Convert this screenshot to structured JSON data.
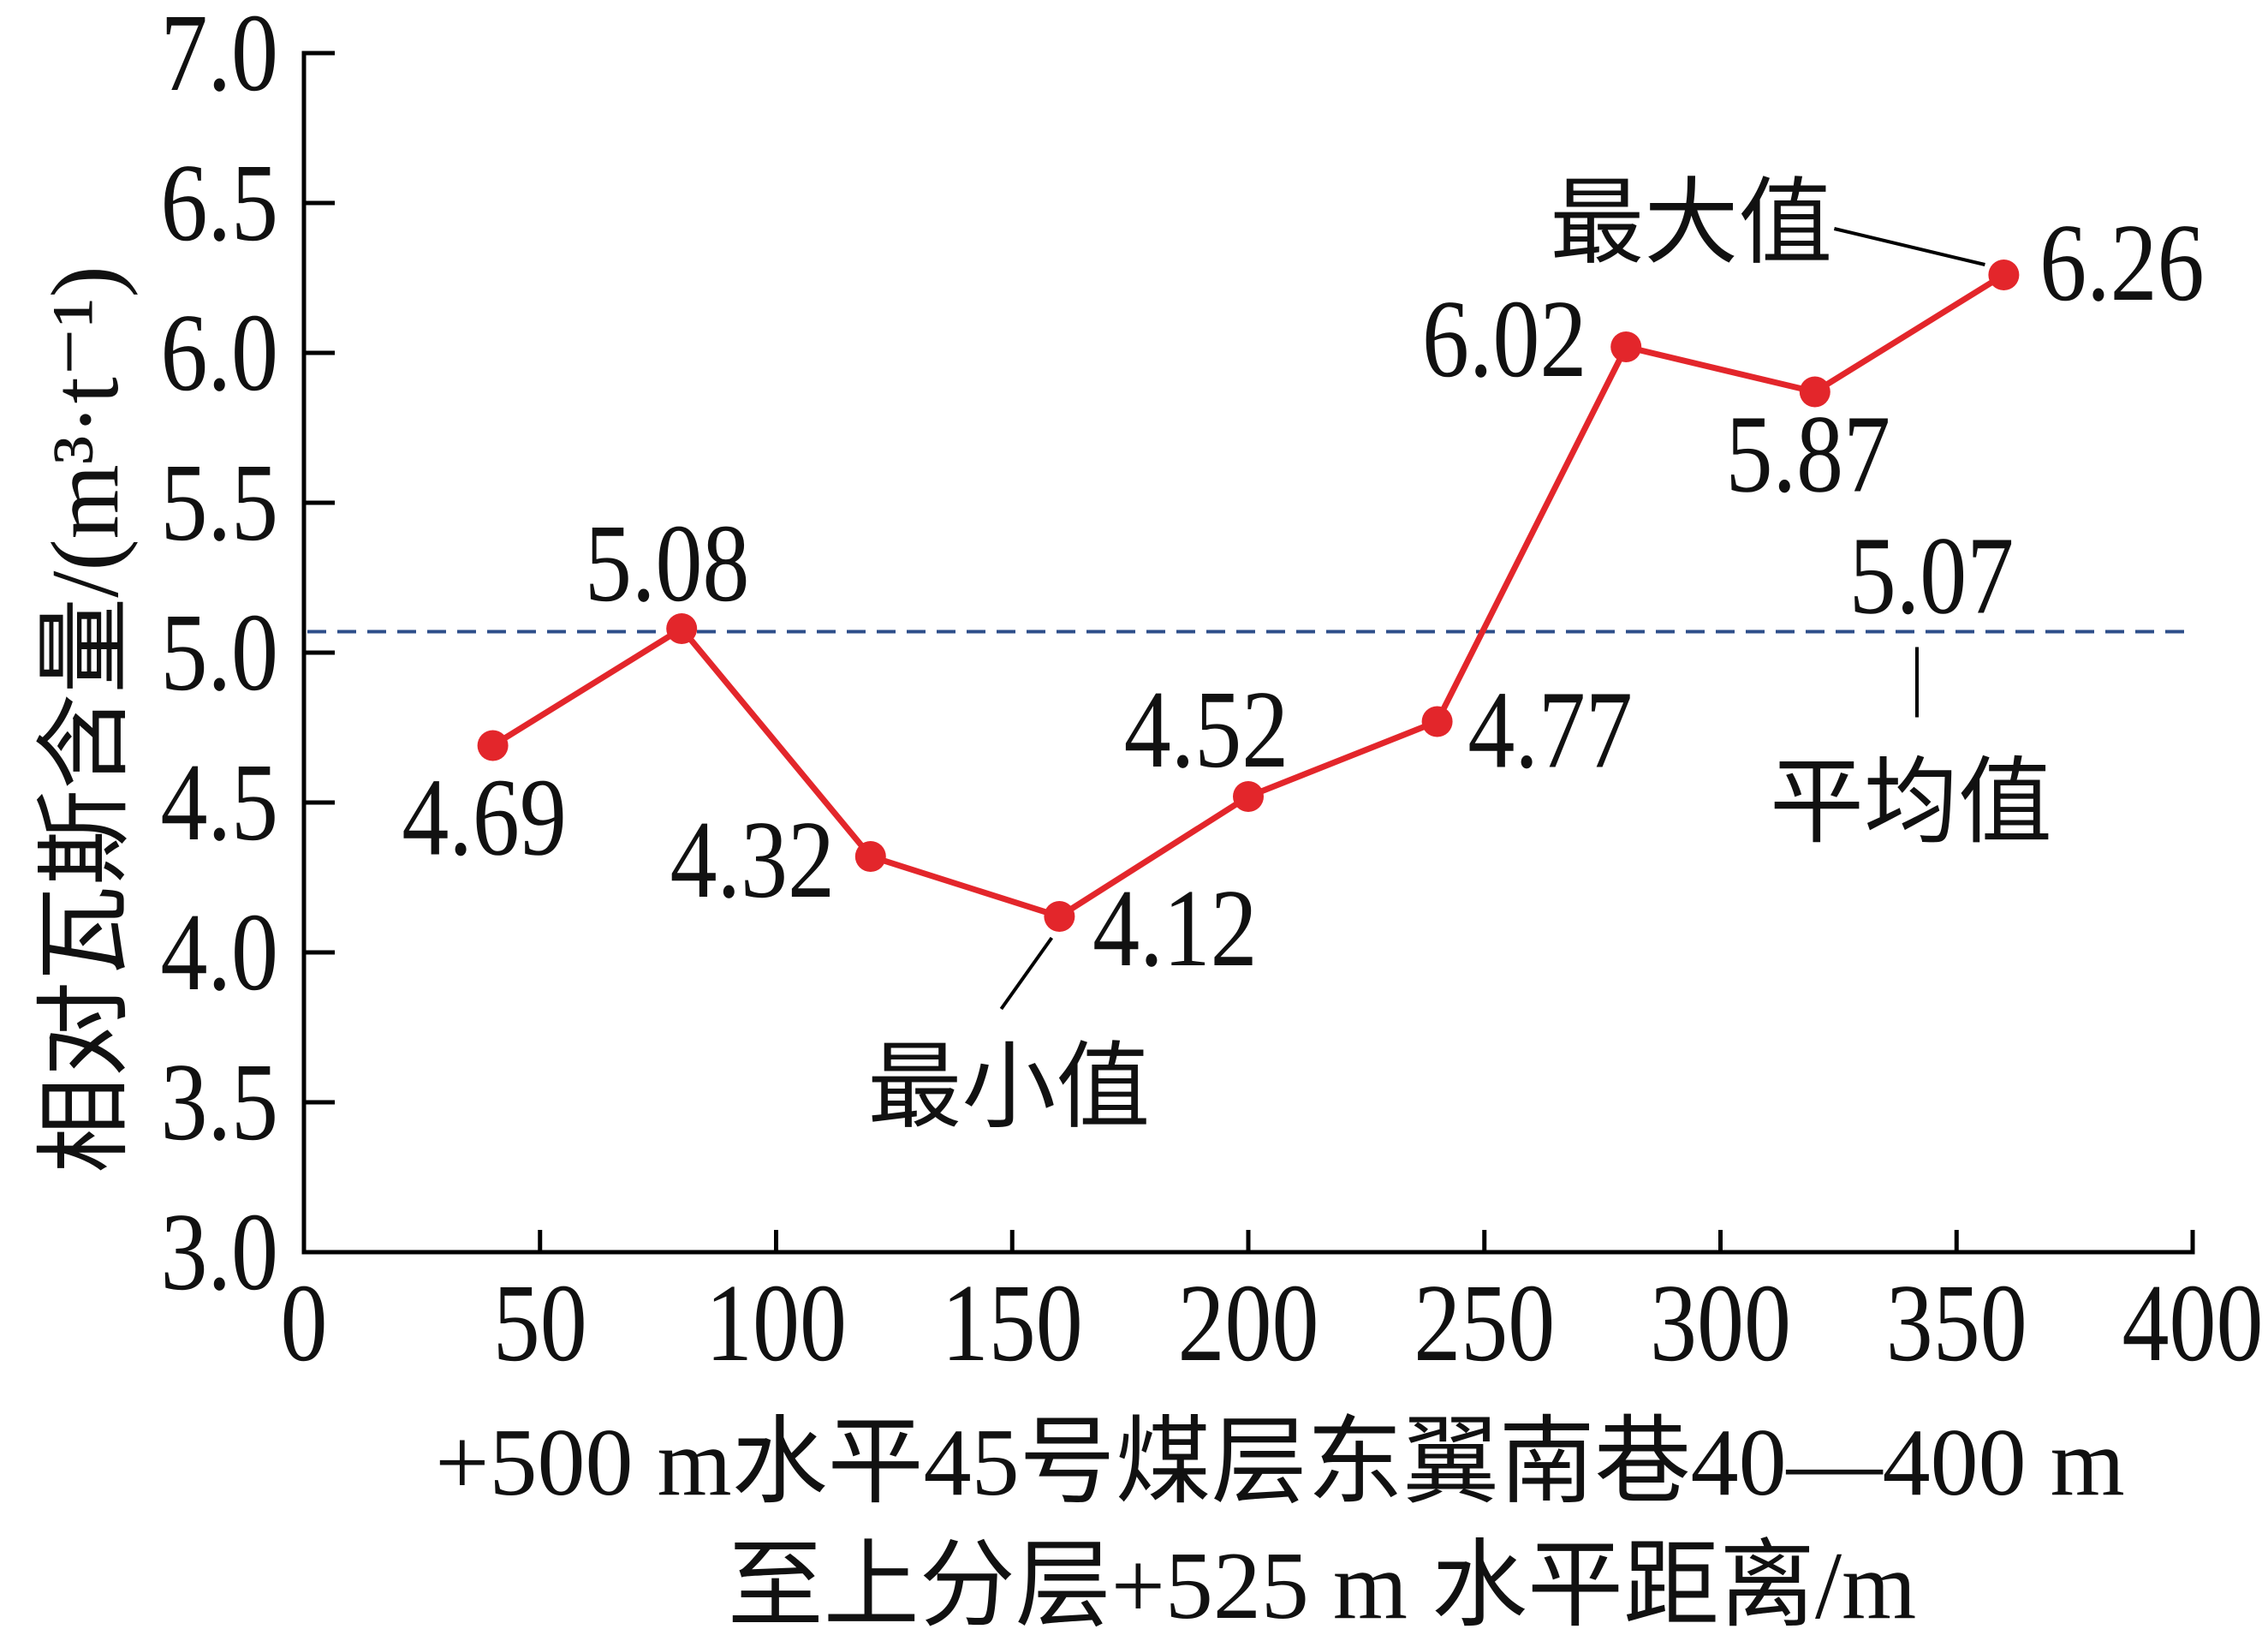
{
  "chart_data": {
    "type": "line",
    "xlabel": [
      "+500 m水平45号煤层东翼南巷40—400 m",
      "至上分层+525 m 水平距离/m"
    ],
    "ylabel": "相对瓦斯含量/(m³·t⁻¹)",
    "xlim": [
      0,
      400
    ],
    "ylim": [
      3.0,
      7.0
    ],
    "xticks": [
      "0",
      "50",
      "100",
      "150",
      "200",
      "250",
      "300",
      "350",
      "400"
    ],
    "yticks": [
      "3.0",
      "3.5",
      "4.0",
      "4.5",
      "5.0",
      "5.5",
      "6.0",
      "6.5",
      "7.0"
    ],
    "grid": false,
    "x": [
      40,
      80,
      120,
      160,
      200,
      240,
      280,
      320,
      360
    ],
    "series": [
      {
        "values": [
          4.69,
          5.08,
          4.32,
          4.12,
          4.52,
          4.77,
          6.02,
          5.87,
          6.26
        ],
        "labels": [
          "4.69",
          "5.08",
          "4.32",
          "4.12",
          "4.52",
          "4.77",
          "6.02",
          "5.87",
          "6.26"
        ],
        "color": "#e3262b"
      }
    ],
    "mean_line": {
      "value": 5.07,
      "label": "5.07",
      "annotation": "平均值",
      "color": "#2d4e8a"
    },
    "annotations": [
      {
        "text": "最大值",
        "point_index": 8
      },
      {
        "text": "最小值",
        "point_index": 3
      }
    ]
  },
  "colors": {
    "axis": "#000000",
    "text": "#111111"
  }
}
